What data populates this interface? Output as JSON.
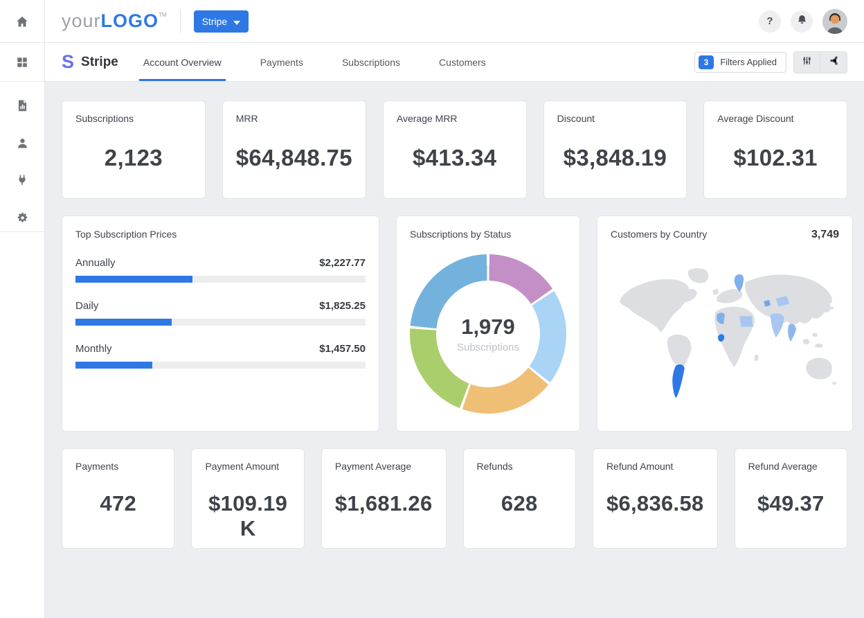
{
  "header": {
    "logo": {
      "prefix": "your",
      "brand": "LOGO",
      "tm": "TM"
    },
    "source_selector": {
      "label": "Stripe"
    },
    "help_label": "?"
  },
  "sidebar": {
    "icons": [
      "home",
      "dashboard-grid",
      "report-document",
      "customers-person",
      "integrations-plug",
      "settings-gear"
    ]
  },
  "subnav": {
    "brand_initial": "S",
    "title": "Stripe",
    "tabs": [
      {
        "label": "Account Overview",
        "active": true
      },
      {
        "label": "Payments",
        "active": false
      },
      {
        "label": "Subscriptions",
        "active": false
      },
      {
        "label": "Customers",
        "active": false
      }
    ],
    "filters_badge_count": "3",
    "filters_label": "Filters Applied",
    "toolbar_icons": [
      "filter-sliders",
      "share"
    ]
  },
  "kpis_top": [
    {
      "title": "Subscriptions",
      "value": "2,123"
    },
    {
      "title": "MRR",
      "value": "$64,848.75"
    },
    {
      "title": "Average MRR",
      "value": "$413.34"
    },
    {
      "title": "Discount",
      "value": "$3,848.19"
    },
    {
      "title": "Average Discount",
      "value": "$102.31"
    }
  ],
  "kpis_bottom": [
    {
      "title": "Payments",
      "value": "472"
    },
    {
      "title": "Payment Amount",
      "value": "$109.19 K"
    },
    {
      "title": "Payment Average",
      "value": "$1,681.26"
    },
    {
      "title": "Refunds",
      "value": "628"
    },
    {
      "title": "Refund Amount",
      "value": "$6,836.58"
    },
    {
      "title": "Refund Average",
      "value": "$49.37"
    }
  ],
  "colors": {
    "accent_blue": "#2E78E6",
    "brand_indigo": "#6772E5",
    "page_background": "#EDEEF1",
    "card_border": "#E2E4E8"
  },
  "chart_data": [
    {
      "type": "bar",
      "title": "Top Subscription Prices",
      "orientation": "horizontal",
      "categories": [
        "Annually",
        "Daily",
        "Monthly"
      ],
      "values": [
        2227.77,
        1825.25,
        1457.5
      ],
      "value_labels": [
        "$2,227.77",
        "$1,825.25",
        "$1,457.50"
      ],
      "bar_color": "#2E78E6",
      "bar_widths_pct_of_total": [
        40.4,
        33.1,
        26.4
      ]
    },
    {
      "type": "pie",
      "donut": true,
      "title": "Subscriptions by Status",
      "center_value": "1,979",
      "center_label": "Subscriptions",
      "total": 1979,
      "start": "12 o'clock, clockwise",
      "segments": [
        {
          "color": "#C38FC6",
          "degrees": 56,
          "pct": 15.6
        },
        {
          "color": "#A9D4F6",
          "degrees": 73,
          "pct": 20.3
        },
        {
          "color": "#EFBF75",
          "degrees": 71,
          "pct": 19.7
        },
        {
          "color": "#AACE6B",
          "degrees": 75,
          "pct": 20.8
        },
        {
          "color": "#74B2DE",
          "degrees": 85,
          "pct": 23.6
        }
      ]
    },
    {
      "type": "map",
      "title": "Customers by Country",
      "total": "3,749",
      "base_land_color": "#DCDEE2",
      "highlights": [
        {
          "key": "argentina",
          "name": "Argentina",
          "color": "#2E78E6"
        },
        {
          "key": "sweden",
          "name": "Sweden",
          "color": "#7FB0EC"
        },
        {
          "key": "egypt",
          "name": "Egypt",
          "color": "#A9C6F2"
        },
        {
          "key": "india",
          "name": "India",
          "color": "#A9C6F2"
        },
        {
          "key": "thailand",
          "name": "Thailand",
          "color": "#8FB7EE"
        },
        {
          "key": "west-africa",
          "name": "West Africa",
          "color": "#2E78E6"
        },
        {
          "key": "northwest-africa",
          "name": "Northwest Africa",
          "color": "#7FB0EC"
        },
        {
          "key": "central-asia",
          "name": "Central Asia",
          "color": "#A9C6F2"
        },
        {
          "key": "caucasus",
          "name": "Caucasus",
          "color": "#6FA7EA"
        }
      ]
    }
  ]
}
